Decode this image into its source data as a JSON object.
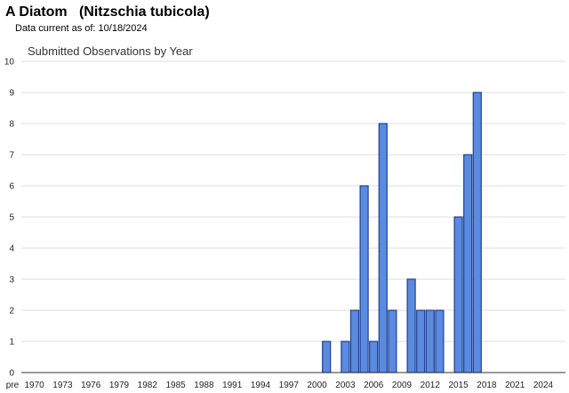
{
  "header": {
    "title": "A Diatom   (Nitzschia tubicola)",
    "subtitle": "Data current as of: 10/18/2024"
  },
  "chart_data": {
    "type": "bar",
    "title": "Submitted Observations by Year",
    "xlabel": "",
    "ylabel": "",
    "ylim": [
      0,
      10
    ],
    "yticks": [
      0,
      1,
      2,
      3,
      4,
      5,
      6,
      7,
      8,
      9,
      10
    ],
    "grid": true,
    "x_tick_labels": [
      "pre",
      "1970",
      "1973",
      "1976",
      "1979",
      "1982",
      "1985",
      "1988",
      "1991",
      "1994",
      "1997",
      "2000",
      "2003",
      "2006",
      "2009",
      "2012",
      "2015",
      "2018",
      "2021",
      "2024"
    ],
    "bars": [
      {
        "year": "2001",
        "value": 1
      },
      {
        "year": "2003",
        "value": 1
      },
      {
        "year": "2004",
        "value": 2
      },
      {
        "year": "2005",
        "value": 6
      },
      {
        "year": "2006",
        "value": 1
      },
      {
        "year": "2007",
        "value": 8
      },
      {
        "year": "2008",
        "value": 2
      },
      {
        "year": "2010",
        "value": 3
      },
      {
        "year": "2011",
        "value": 2
      },
      {
        "year": "2012",
        "value": 2
      },
      {
        "year": "2013",
        "value": 2
      },
      {
        "year": "2015",
        "value": 5
      },
      {
        "year": "2016",
        "value": 7
      },
      {
        "year": "2017",
        "value": 9
      }
    ],
    "colors": {
      "bar_fill": "#5b8be0",
      "bar_stroke": "#1f3f8f",
      "grid": "#dddddd",
      "axis": "#333333"
    }
  }
}
